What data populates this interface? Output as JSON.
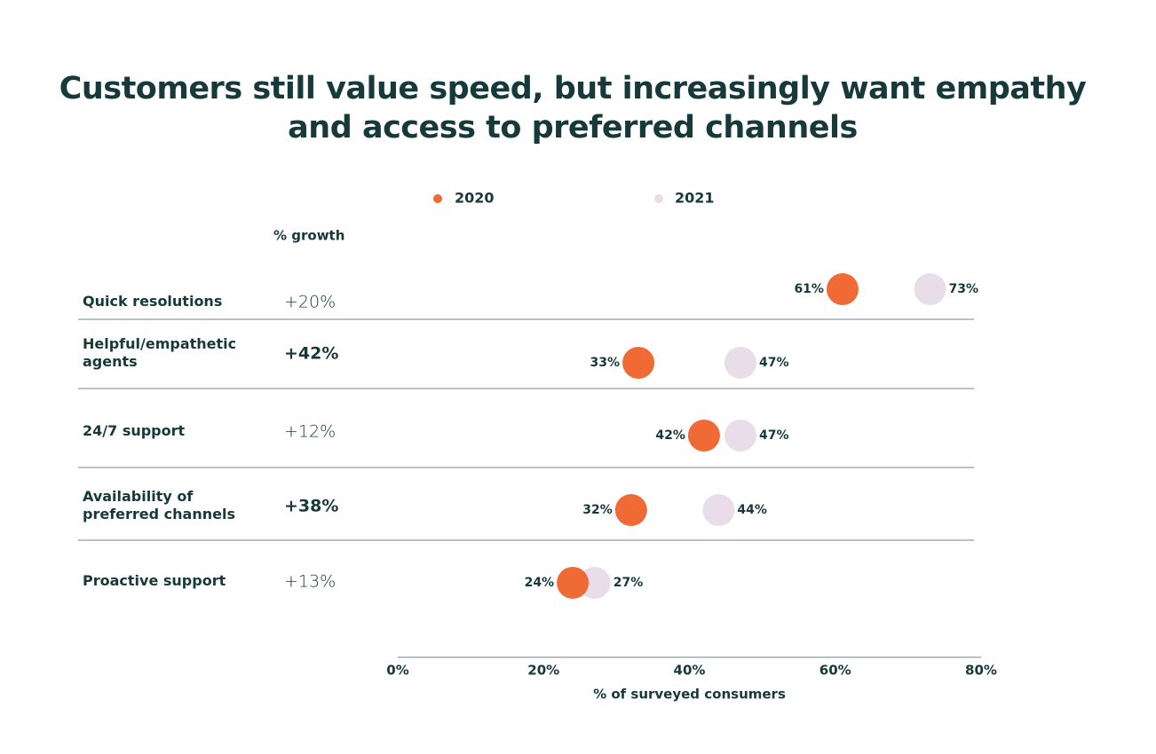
{
  "chart_data": {
    "type": "dot",
    "title": "Customers still value speed, but increasingly want empathy and access to preferred channels",
    "categories": [
      "Quick resolutions",
      "Helpful/empathetic agents",
      "24/7 support",
      "Availability of preferred channels",
      "Proactive support"
    ],
    "growth": {
      "title": "% growth",
      "values": [
        20,
        42,
        12,
        38,
        13
      ],
      "value_labels": [
        "+20%",
        "+42%",
        "+12%",
        "+38%",
        "+13%"
      ],
      "bold": [
        false,
        true,
        false,
        true,
        false
      ]
    },
    "series": [
      {
        "name": "2020",
        "color": "#f06a35",
        "values": [
          61,
          33,
          42,
          32,
          24
        ],
        "value_labels": [
          "61%",
          "33%",
          "42%",
          "32%",
          "24%"
        ]
      },
      {
        "name": "2021",
        "color": "#e9dde9",
        "values": [
          73,
          47,
          47,
          44,
          27
        ],
        "value_labels": [
          "73%",
          "47%",
          "47%",
          "44%",
          "27%"
        ]
      }
    ],
    "xlim": [
      0,
      80
    ],
    "xticks": [
      {
        "value": 0,
        "label": "0%"
      },
      {
        "value": 20,
        "label": "20%"
      },
      {
        "value": 40,
        "label": "40%"
      },
      {
        "value": 60,
        "label": "60%"
      },
      {
        "value": 80,
        "label": "80%"
      }
    ],
    "xlabel": "% of surveyed consumers"
  }
}
